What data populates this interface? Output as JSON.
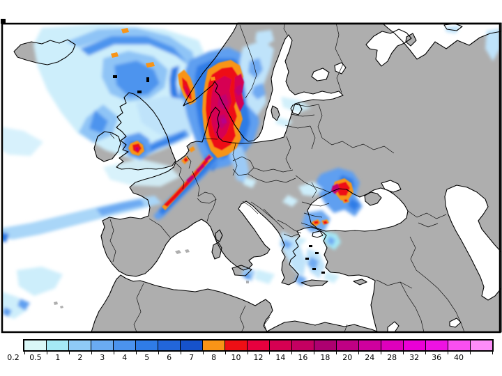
{
  "title": "precipitation-forecast-map-europe",
  "legend": {
    "values": [
      "0.2",
      "0.5",
      "1",
      "2",
      "3",
      "4",
      "5",
      "6",
      "7",
      "8",
      "10",
      "12",
      "14",
      "16",
      "18",
      "20",
      "24",
      "28",
      "32",
      "36",
      "40"
    ],
    "colors": [
      "#d9f7f7",
      "#a5e9f5",
      "#8fcaf6",
      "#6aabf2",
      "#4b93ee",
      "#2f7ce6",
      "#2266da",
      "#1652cb",
      "#f89417",
      "#ee0f15",
      "#e6003e",
      "#d60052",
      "#c40061",
      "#ad0070",
      "#bf0084",
      "#cf009e",
      "#de00bc",
      "#ea00d6",
      "#ee12e2",
      "#f94ff0",
      "#fd8df8"
    ]
  },
  "map": {
    "sea_color": "#ffffff",
    "land_color": "#aeaeae",
    "coast_color": "#000000",
    "frame_color": "#000000"
  },
  "chart_data": {
    "type": "heatmap",
    "title": "",
    "legend_values": [
      0.2,
      0.5,
      1,
      2,
      3,
      4,
      5,
      6,
      7,
      8,
      10,
      12,
      14,
      16,
      18,
      20,
      24,
      28,
      32,
      36,
      40
    ],
    "legend_position": "bottom"
  }
}
